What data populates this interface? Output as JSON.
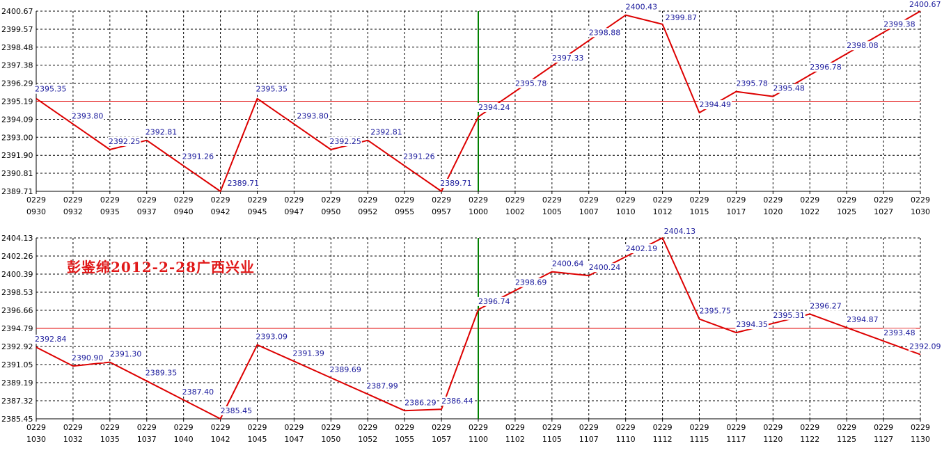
{
  "colors": {
    "line": "#dd0000",
    "reference": "#e00000",
    "marker": "#008000",
    "label": "#1a1a9c",
    "annotation": "#e01818"
  },
  "annotation": "彭鉴绵2012-2-28广西兴业",
  "chart_data": [
    {
      "type": "line",
      "title": "",
      "xlabel": "",
      "ylabel": "",
      "ylim": [
        2389.71,
        2400.67
      ],
      "yticks": [
        "2400.67",
        "2399.57",
        "2398.48",
        "2397.38",
        "2396.29",
        "2395.19",
        "2394.09",
        "2393.00",
        "2391.90",
        "2390.81",
        "2389.71"
      ],
      "reference_line": 2395.19,
      "marker_x": "1000",
      "grid": true,
      "categories": [
        "0930",
        "0932",
        "0935",
        "0937",
        "0940",
        "0942",
        "0945",
        "0947",
        "0950",
        "0952",
        "0955",
        "0957",
        "1000",
        "1002",
        "1005",
        "1007",
        "1010",
        "1012",
        "1015",
        "1017",
        "1020",
        "1022",
        "1025",
        "1027",
        "1030"
      ],
      "date_label": "0229",
      "series": [
        {
          "values": [
            2395.35,
            2393.8,
            2392.25,
            2392.81,
            2391.26,
            2389.71,
            2395.35,
            2393.8,
            2392.25,
            2392.81,
            2391.26,
            2389.71,
            2394.24,
            2395.78,
            2397.33,
            2398.88,
            2400.43,
            2399.87,
            2394.49,
            2395.78,
            2395.48,
            2396.78,
            2398.08,
            2399.38,
            2400.67
          ]
        }
      ]
    },
    {
      "type": "line",
      "title": "",
      "xlabel": "",
      "ylabel": "",
      "ylim": [
        2385.45,
        2404.13
      ],
      "yticks": [
        "2404.13",
        "2402.26",
        "2400.39",
        "2398.53",
        "2396.66",
        "2394.79",
        "2392.92",
        "2391.05",
        "2389.19",
        "2387.32",
        "2385.45"
      ],
      "reference_line": 2394.79,
      "marker_x": "1100",
      "grid": true,
      "categories": [
        "1030",
        "1032",
        "1035",
        "1037",
        "1040",
        "1042",
        "1045",
        "1047",
        "1050",
        "1052",
        "1055",
        "1057",
        "1100",
        "1102",
        "1105",
        "1107",
        "1110",
        "1112",
        "1115",
        "1117",
        "1120",
        "1122",
        "1125",
        "1127",
        "1130"
      ],
      "date_label": "0229",
      "series": [
        {
          "values": [
            2392.84,
            2390.9,
            2391.3,
            2389.35,
            2387.4,
            2385.45,
            2393.09,
            2391.39,
            2389.69,
            2387.99,
            2386.29,
            2386.44,
            2396.74,
            2398.69,
            2400.64,
            2400.24,
            2402.19,
            2404.13,
            2395.75,
            2394.35,
            2395.31,
            2396.27,
            2394.87,
            2393.48,
            2392.09
          ]
        }
      ]
    }
  ]
}
